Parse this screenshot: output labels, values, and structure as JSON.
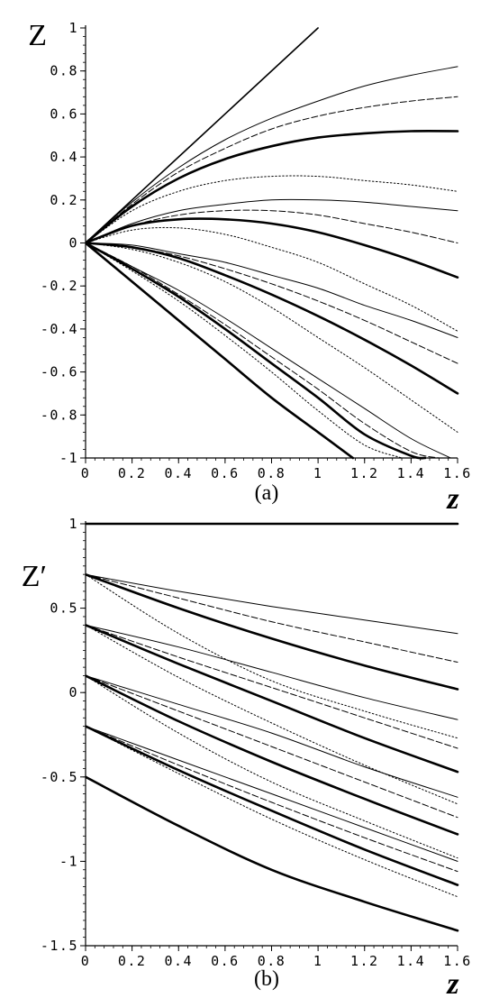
{
  "chart_data": [
    {
      "type": "line",
      "panel_label": "(a)",
      "ylabel": "Z",
      "xlabel": "z",
      "xlim": [
        0,
        1.6
      ],
      "ylim": [
        -1,
        1
      ],
      "xticks": [
        0,
        0.2,
        0.4,
        0.6,
        0.8,
        1,
        1.2,
        1.4,
        1.6
      ],
      "xtick_labels": [
        "0",
        "0.2",
        "0.4",
        "0.6",
        "0.8",
        "1",
        "1.2",
        "1.4",
        "1.6"
      ],
      "yticks": [
        -1,
        -0.8,
        -0.6,
        -0.4,
        -0.2,
        0,
        0.2,
        0.4,
        0.6,
        0.8,
        1
      ],
      "ytick_labels": [
        "-1",
        "-0.8",
        "-0.6",
        "-0.4",
        "-0.2",
        "0",
        "0.2",
        "0.4",
        "0.6",
        "0.8",
        "1"
      ],
      "series": [
        {
          "style": "solid",
          "x": [
            0,
            1.0
          ],
          "y": [
            0,
            1.0
          ]
        },
        {
          "style": "thin",
          "x": [
            0,
            0.2,
            0.4,
            0.6,
            0.8,
            1.0,
            1.2,
            1.4,
            1.6
          ],
          "y": [
            0,
            0.19,
            0.35,
            0.48,
            0.58,
            0.66,
            0.73,
            0.78,
            0.82
          ]
        },
        {
          "style": "dash",
          "x": [
            0,
            0.2,
            0.4,
            0.6,
            0.8,
            1.0,
            1.2,
            1.4,
            1.6
          ],
          "y": [
            0,
            0.18,
            0.33,
            0.44,
            0.53,
            0.59,
            0.63,
            0.66,
            0.68
          ]
        },
        {
          "style": "thick",
          "x": [
            0,
            0.2,
            0.4,
            0.6,
            0.8,
            1.0,
            1.2,
            1.4,
            1.6
          ],
          "y": [
            0,
            0.17,
            0.3,
            0.39,
            0.45,
            0.49,
            0.51,
            0.52,
            0.52
          ]
        },
        {
          "style": "dot",
          "x": [
            0,
            0.2,
            0.4,
            0.6,
            0.8,
            1.0,
            1.2,
            1.4,
            1.6
          ],
          "y": [
            0,
            0.15,
            0.24,
            0.29,
            0.31,
            0.31,
            0.29,
            0.27,
            0.24
          ]
        },
        {
          "style": "thin",
          "x": [
            0,
            0.2,
            0.4,
            0.6,
            0.8,
            1.0,
            1.2,
            1.4,
            1.6
          ],
          "y": [
            0,
            0.09,
            0.15,
            0.18,
            0.2,
            0.2,
            0.19,
            0.17,
            0.15
          ]
        },
        {
          "style": "dash",
          "x": [
            0,
            0.2,
            0.4,
            0.6,
            0.8,
            1.0,
            1.2,
            1.4,
            1.6
          ],
          "y": [
            0,
            0.08,
            0.13,
            0.15,
            0.15,
            0.13,
            0.09,
            0.05,
            0.0
          ]
        },
        {
          "style": "thick",
          "x": [
            0,
            0.2,
            0.4,
            0.6,
            0.8,
            1.0,
            1.2,
            1.4,
            1.6
          ],
          "y": [
            0,
            0.08,
            0.11,
            0.11,
            0.09,
            0.05,
            -0.01,
            -0.08,
            -0.16
          ]
        },
        {
          "style": "dot",
          "x": [
            0,
            0.2,
            0.4,
            0.6,
            0.8,
            1.0,
            1.2,
            1.4,
            1.6
          ],
          "y": [
            0,
            0.06,
            0.07,
            0.04,
            -0.02,
            -0.09,
            -0.19,
            -0.29,
            -0.41
          ]
        },
        {
          "style": "thin",
          "x": [
            0,
            0.2,
            0.4,
            0.6,
            0.8,
            1.0,
            1.2,
            1.4,
            1.6
          ],
          "y": [
            0,
            -0.01,
            -0.05,
            -0.09,
            -0.15,
            -0.21,
            -0.29,
            -0.36,
            -0.44
          ]
        },
        {
          "style": "dash",
          "x": [
            0,
            0.2,
            0.4,
            0.6,
            0.8,
            1.0,
            1.2,
            1.4,
            1.6
          ],
          "y": [
            0,
            -0.02,
            -0.06,
            -0.12,
            -0.19,
            -0.27,
            -0.36,
            -0.46,
            -0.56
          ]
        },
        {
          "style": "thick",
          "x": [
            0,
            0.2,
            0.4,
            0.6,
            0.8,
            1.0,
            1.2,
            1.4,
            1.6
          ],
          "y": [
            0,
            -0.02,
            -0.07,
            -0.15,
            -0.24,
            -0.34,
            -0.45,
            -0.57,
            -0.7
          ]
        },
        {
          "style": "dot",
          "x": [
            0,
            0.2,
            0.4,
            0.6,
            0.8,
            1.0,
            1.2,
            1.4,
            1.6
          ],
          "y": [
            0,
            -0.03,
            -0.09,
            -0.18,
            -0.3,
            -0.44,
            -0.58,
            -0.73,
            -0.88
          ]
        },
        {
          "style": "thin",
          "x": [
            0,
            0.2,
            0.4,
            0.6,
            0.8,
            1.0,
            1.2,
            1.4,
            1.57
          ],
          "y": [
            0,
            -0.11,
            -0.22,
            -0.35,
            -0.49,
            -0.63,
            -0.77,
            -0.91,
            -1.0
          ]
        },
        {
          "style": "dash",
          "x": [
            0,
            0.2,
            0.4,
            0.6,
            0.8,
            1.0,
            1.2,
            1.4,
            1.52
          ],
          "y": [
            0,
            -0.11,
            -0.24,
            -0.38,
            -0.53,
            -0.68,
            -0.84,
            -0.97,
            -1.0
          ]
        },
        {
          "style": "thick",
          "x": [
            0,
            0.2,
            0.4,
            0.6,
            0.8,
            1.0,
            1.2,
            1.4,
            1.46
          ],
          "y": [
            0,
            -0.12,
            -0.25,
            -0.4,
            -0.56,
            -0.72,
            -0.89,
            -0.99,
            -1.0
          ]
        },
        {
          "style": "dot",
          "x": [
            0,
            0.2,
            0.4,
            0.6,
            0.8,
            1.0,
            1.2,
            1.36
          ],
          "y": [
            0,
            -0.13,
            -0.27,
            -0.43,
            -0.6,
            -0.78,
            -0.94,
            -1.0
          ]
        },
        {
          "style": "thick",
          "x": [
            0,
            0.2,
            0.4,
            0.6,
            0.8,
            1.0,
            1.15
          ],
          "y": [
            0,
            -0.18,
            -0.36,
            -0.54,
            -0.72,
            -0.88,
            -1.0
          ]
        }
      ]
    },
    {
      "type": "line",
      "panel_label": "(b)",
      "ylabel": "Z′",
      "xlabel": "z",
      "xlim": [
        0,
        1.6
      ],
      "ylim": [
        -1.5,
        1
      ],
      "xticks": [
        0,
        0.2,
        0.4,
        0.6,
        0.8,
        1,
        1.2,
        1.4,
        1.6
      ],
      "xtick_labels": [
        "0",
        "0.2",
        "0.4",
        "0.6",
        "0.8",
        "1",
        "1.2",
        "1.4",
        "1.6"
      ],
      "yticks": [
        -1.5,
        -1,
        -0.5,
        0,
        0.5,
        1
      ],
      "ytick_labels": [
        "-1.5",
        "-1",
        "-0.5",
        "0",
        "0.5",
        "1"
      ],
      "series": [
        {
          "style": "thick",
          "x": [
            0,
            1.6
          ],
          "y": [
            1,
            1
          ]
        },
        {
          "style": "thin",
          "x": [
            0,
            0.4,
            0.8,
            1.2,
            1.6
          ],
          "y": [
            0.7,
            0.6,
            0.51,
            0.43,
            0.35
          ]
        },
        {
          "style": "dash",
          "x": [
            0,
            0.4,
            0.8,
            1.2,
            1.6
          ],
          "y": [
            0.7,
            0.56,
            0.42,
            0.3,
            0.18
          ]
        },
        {
          "style": "thick",
          "x": [
            0,
            0.4,
            0.8,
            1.2,
            1.6
          ],
          "y": [
            0.7,
            0.5,
            0.32,
            0.16,
            0.02
          ]
        },
        {
          "style": "dot",
          "x": [
            0,
            0.4,
            0.8,
            1.2,
            1.6
          ],
          "y": [
            0.7,
            0.35,
            0.07,
            -0.11,
            -0.27
          ]
        },
        {
          "style": "thin",
          "x": [
            0,
            0.4,
            0.8,
            1.2,
            1.6
          ],
          "y": [
            0.4,
            0.27,
            0.12,
            -0.03,
            -0.16
          ]
        },
        {
          "style": "dash",
          "x": [
            0,
            0.4,
            0.8,
            1.2,
            1.6
          ],
          "y": [
            0.4,
            0.21,
            0.03,
            -0.15,
            -0.33
          ]
        },
        {
          "style": "thick",
          "x": [
            0,
            0.4,
            0.8,
            1.2,
            1.6
          ],
          "y": [
            0.4,
            0.17,
            -0.05,
            -0.27,
            -0.47
          ]
        },
        {
          "style": "dot",
          "x": [
            0,
            0.4,
            0.8,
            1.2,
            1.6
          ],
          "y": [
            0.4,
            0.09,
            -0.18,
            -0.43,
            -0.66
          ]
        },
        {
          "style": "thin",
          "x": [
            0,
            0.4,
            0.8,
            1.2,
            1.6
          ],
          "y": [
            0.1,
            -0.07,
            -0.24,
            -0.44,
            -0.62
          ]
        },
        {
          "style": "dash",
          "x": [
            0,
            0.4,
            0.8,
            1.2,
            1.6
          ],
          "y": [
            0.1,
            -0.11,
            -0.32,
            -0.53,
            -0.74
          ]
        },
        {
          "style": "thick",
          "x": [
            0,
            0.4,
            0.8,
            1.2,
            1.6
          ],
          "y": [
            0.1,
            -0.17,
            -0.41,
            -0.63,
            -0.84
          ]
        },
        {
          "style": "dot",
          "x": [
            0,
            0.4,
            0.8,
            1.2,
            1.6
          ],
          "y": [
            0.1,
            -0.24,
            -0.53,
            -0.76,
            -0.98
          ]
        },
        {
          "style": "thin",
          "x": [
            0,
            0.4,
            0.8,
            1.2,
            1.6
          ],
          "y": [
            -0.2,
            -0.4,
            -0.6,
            -0.8,
            -1.0
          ]
        },
        {
          "style": "dash",
          "x": [
            0,
            0.4,
            0.8,
            1.2,
            1.6
          ],
          "y": [
            -0.2,
            -0.43,
            -0.65,
            -0.86,
            -1.06
          ]
        },
        {
          "style": "thick",
          "x": [
            0,
            0.4,
            0.8,
            1.2,
            1.6
          ],
          "y": [
            -0.2,
            -0.46,
            -0.7,
            -0.93,
            -1.14
          ]
        },
        {
          "style": "dot",
          "x": [
            0,
            0.4,
            0.8,
            1.2,
            1.6
          ],
          "y": [
            -0.2,
            -0.48,
            -0.75,
            -0.99,
            -1.21
          ]
        },
        {
          "style": "thick",
          "x": [
            0,
            0.4,
            0.8,
            1.2,
            1.6
          ],
          "y": [
            -0.5,
            -0.79,
            -1.05,
            -1.24,
            -1.41
          ]
        }
      ]
    }
  ]
}
